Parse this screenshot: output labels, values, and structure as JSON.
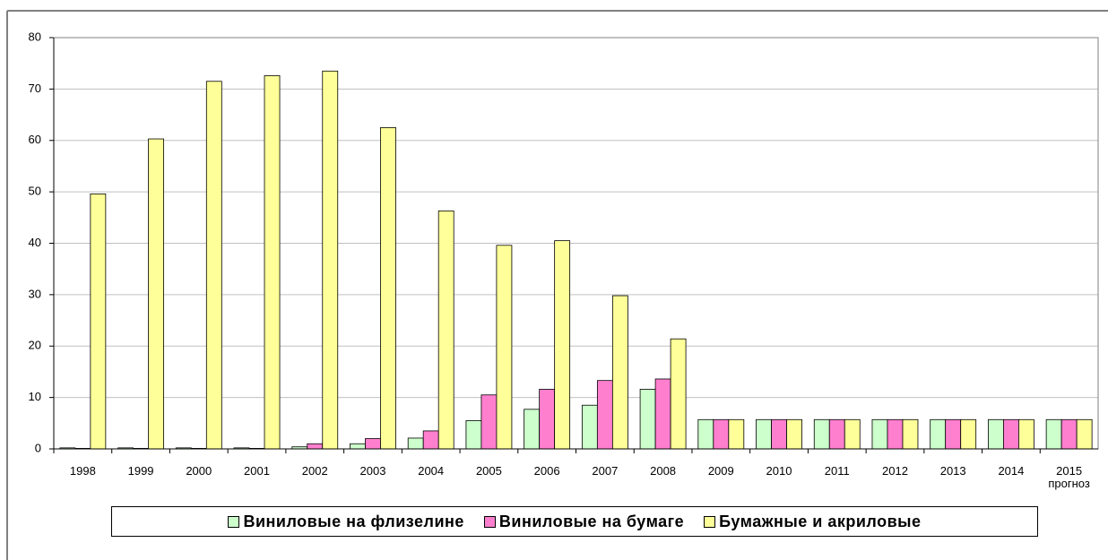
{
  "chart_data": {
    "type": "bar",
    "categories": [
      "1998",
      "1999",
      "2000",
      "2001",
      "2002",
      "2003",
      "2004",
      "2005",
      "2006",
      "2007",
      "2008",
      "2009",
      "2010",
      "2011",
      "2012",
      "2013",
      "2014",
      "2015\nпрогноз"
    ],
    "series": [
      {
        "name": "Виниловые на флизелине",
        "color": "#ccffcc",
        "values": [
          0.2,
          0.2,
          0.2,
          0.2,
          0.4,
          1.0,
          2.1,
          5.5,
          7.7,
          8.5,
          11.6,
          5.7,
          5.7,
          5.7,
          5.7,
          5.7,
          5.7,
          5.7
        ]
      },
      {
        "name": "Виниловые на бумаге",
        "color": "#ff7fcf",
        "values": [
          0.1,
          0.1,
          0.1,
          0.1,
          1.0,
          2.0,
          3.5,
          10.5,
          11.6,
          13.3,
          13.6,
          5.7,
          5.7,
          5.7,
          5.7,
          5.7,
          5.7,
          5.7
        ]
      },
      {
        "name": "Бумажные и акриловые",
        "color": "#ffff99",
        "values": [
          49.6,
          60.3,
          71.5,
          72.6,
          73.5,
          62.5,
          46.3,
          39.6,
          40.5,
          29.8,
          21.4,
          5.7,
          5.7,
          5.7,
          5.7,
          5.7,
          5.7,
          5.7
        ]
      }
    ],
    "ylim": [
      0,
      80
    ],
    "yticks": [
      0,
      10,
      20,
      30,
      40,
      50,
      60,
      70,
      80
    ],
    "grid": true,
    "legend": "bottom"
  }
}
